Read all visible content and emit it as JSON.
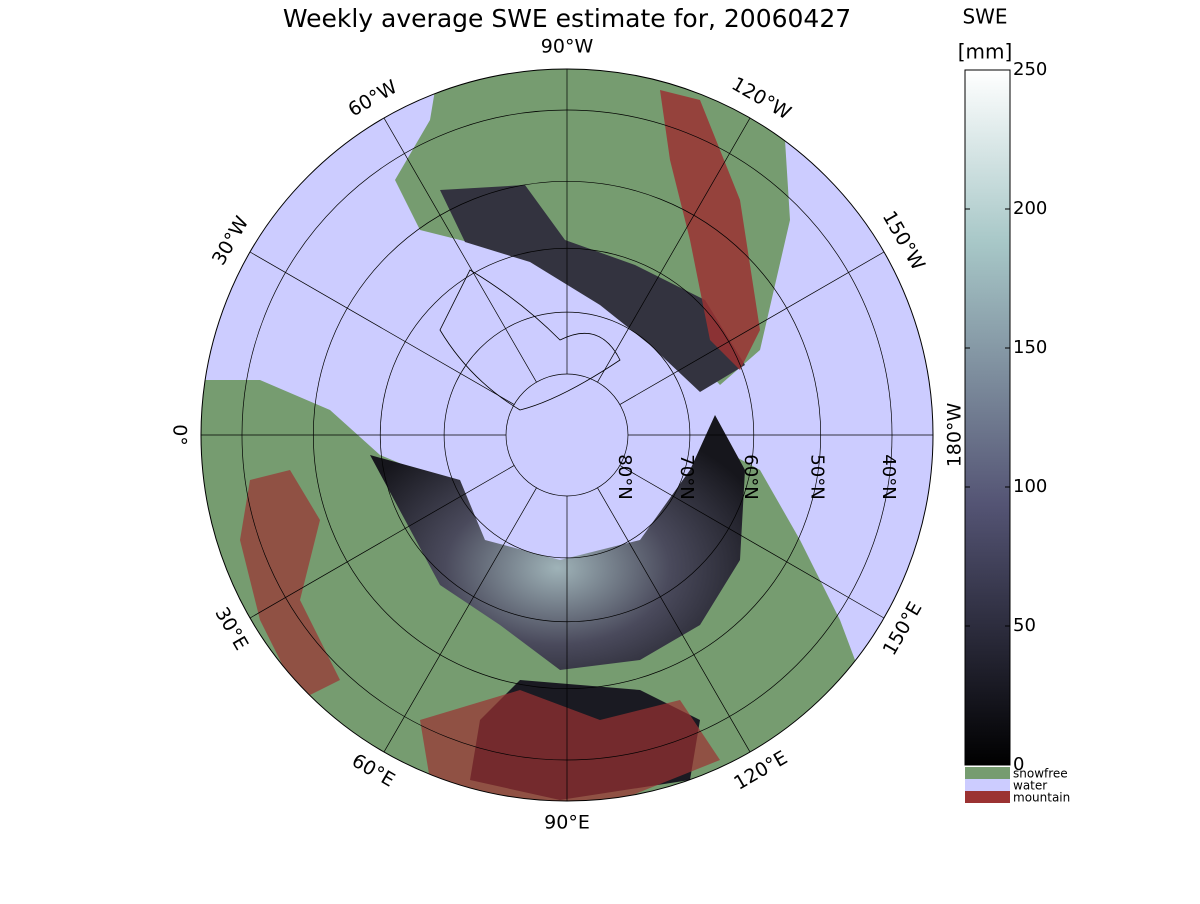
{
  "title": "Weekly average SWE estimate for, 20060427",
  "map": {
    "meridians": [
      {
        "value": 0,
        "label": "0°"
      },
      {
        "value": -30,
        "label": "30°W"
      },
      {
        "value": -60,
        "label": "60°W"
      },
      {
        "value": -90,
        "label": "90°W"
      },
      {
        "value": -120,
        "label": "120°W"
      },
      {
        "value": -150,
        "label": "150°W"
      },
      {
        "value": 180,
        "label": "180°W"
      },
      {
        "value": 150,
        "label": "150°E"
      },
      {
        "value": 120,
        "label": "120°E"
      },
      {
        "value": 90,
        "label": "90°E"
      },
      {
        "value": 60,
        "label": "60°E"
      },
      {
        "value": 30,
        "label": "30°E"
      }
    ],
    "parallels": [
      {
        "value": 80,
        "label": "80°N"
      },
      {
        "value": 70,
        "label": "70°N"
      },
      {
        "value": 60,
        "label": "60°N"
      },
      {
        "value": 50,
        "label": "50°N"
      },
      {
        "value": 40,
        "label": "40°N"
      }
    ]
  },
  "colorbar": {
    "title": "SWE",
    "unit": "[mm]",
    "lim": [
      0,
      250
    ],
    "ticks": [
      0,
      50,
      100,
      150,
      200,
      250
    ],
    "categories": [
      {
        "name": "snowfree",
        "color": "#769c70"
      },
      {
        "name": "water",
        "color": "#ccccff"
      },
      {
        "name": "mountain",
        "color": "#9b3232"
      }
    ]
  }
}
